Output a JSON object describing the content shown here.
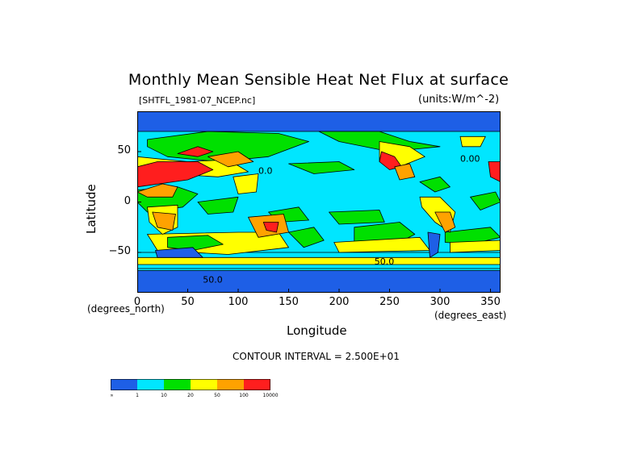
{
  "figure": {
    "title": "Monthly Mean Sensible Heat Net Flux at surface",
    "subtitle": "[SHTFL_1981-07_NCEP.nc]",
    "units": "(units:W/m^-2)",
    "contour_interval": "CONTOUR INTERVAL = 2.500E+01"
  },
  "chart_data": {
    "type": "heatmap",
    "title": "Monthly Mean Sensible Heat Net Flux at surface",
    "xlabel": "Longitude",
    "ylabel": "Latitude",
    "x_unit_label": "(degrees_east)",
    "y_unit_label": "(degrees_north)",
    "xlim": [
      0,
      360
    ],
    "ylim": [
      -90,
      90
    ],
    "x_ticks": [
      0,
      50,
      100,
      150,
      200,
      250,
      300,
      350
    ],
    "y_ticks": [
      50,
      0,
      -50
    ],
    "y_tick_labels": [
      "50",
      "0",
      "−50"
    ],
    "contour_labels": [
      {
        "text": "0.00",
        "x": 320,
        "y": 40
      },
      {
        "text": "0.0",
        "x": 120,
        "y": 28
      },
      {
        "text": "50.0",
        "x": 235,
        "y": -62
      },
      {
        "text": "50.0",
        "x": 65,
        "y": -80
      }
    ],
    "colorbar": {
      "colors": [
        "#1e5fe6",
        "#00e6ff",
        "#00e000",
        "#ffff00",
        "#ffa200",
        "#ff1e1e"
      ],
      "boundaries": [
        "-∞",
        "1",
        "10",
        "20",
        "50",
        "100",
        "10000"
      ]
    },
    "regions": [
      {
        "category": 0,
        "points": [
          [
            0,
            -90
          ],
          [
            360,
            -90
          ],
          [
            360,
            -68
          ],
          [
            0,
            -68
          ]
        ]
      },
      {
        "category": 0,
        "points": [
          [
            0,
            90
          ],
          [
            360,
            90
          ],
          [
            360,
            70
          ],
          [
            0,
            70
          ]
        ]
      },
      {
        "category": 1,
        "points": [
          [
            0,
            -66
          ],
          [
            360,
            -66
          ],
          [
            360,
            -50
          ],
          [
            0,
            -50
          ]
        ]
      },
      {
        "category": 3,
        "points": [
          [
            0,
            -62
          ],
          [
            360,
            -62
          ],
          [
            360,
            -55
          ],
          [
            0,
            -55
          ]
        ]
      },
      {
        "category": 3,
        "points": [
          [
            10,
            -32
          ],
          [
            100,
            -30
          ],
          [
            140,
            -30
          ],
          [
            150,
            -45
          ],
          [
            90,
            -52
          ],
          [
            20,
            -48
          ]
        ]
      },
      {
        "category": 2,
        "points": [
          [
            30,
            -35
          ],
          [
            70,
            -33
          ],
          [
            85,
            -42
          ],
          [
            55,
            -48
          ],
          [
            30,
            -45
          ]
        ]
      },
      {
        "category": 0,
        "points": [
          [
            18,
            -48
          ],
          [
            55,
            -45
          ],
          [
            65,
            -55
          ],
          [
            20,
            -55
          ]
        ]
      },
      {
        "category": 2,
        "points": [
          [
            150,
            -30
          ],
          [
            175,
            -25
          ],
          [
            185,
            -38
          ],
          [
            165,
            -45
          ]
        ]
      },
      {
        "category": 2,
        "points": [
          [
            215,
            -25
          ],
          [
            260,
            -20
          ],
          [
            275,
            -32
          ],
          [
            250,
            -45
          ],
          [
            215,
            -40
          ]
        ]
      },
      {
        "category": 3,
        "points": [
          [
            195,
            -40
          ],
          [
            280,
            -35
          ],
          [
            290,
            -48
          ],
          [
            200,
            -50
          ]
        ]
      },
      {
        "category": 2,
        "points": [
          [
            305,
            -30
          ],
          [
            350,
            -25
          ],
          [
            360,
            -35
          ],
          [
            330,
            -42
          ],
          [
            305,
            -40
          ]
        ]
      },
      {
        "category": 3,
        "points": [
          [
            310,
            -40
          ],
          [
            360,
            -38
          ],
          [
            360,
            -48
          ],
          [
            310,
            -50
          ]
        ]
      },
      {
        "category": 2,
        "points": [
          [
            0,
            12
          ],
          [
            40,
            15
          ],
          [
            60,
            8
          ],
          [
            45,
            -5
          ],
          [
            10,
            -10
          ],
          [
            0,
            0
          ]
        ]
      },
      {
        "category": 2,
        "points": [
          [
            60,
            0
          ],
          [
            100,
            5
          ],
          [
            95,
            -10
          ],
          [
            70,
            -12
          ]
        ]
      },
      {
        "category": 2,
        "points": [
          [
            130,
            -10
          ],
          [
            160,
            -5
          ],
          [
            170,
            -18
          ],
          [
            140,
            -20
          ]
        ]
      },
      {
        "category": 2,
        "points": [
          [
            190,
            -10
          ],
          [
            240,
            -8
          ],
          [
            245,
            -20
          ],
          [
            200,
            -22
          ]
        ]
      },
      {
        "category": 2,
        "points": [
          [
            280,
            20
          ],
          [
            300,
            25
          ],
          [
            310,
            15
          ],
          [
            295,
            10
          ]
        ]
      },
      {
        "category": 2,
        "points": [
          [
            330,
            5
          ],
          [
            355,
            10
          ],
          [
            360,
            0
          ],
          [
            340,
            -8
          ]
        ]
      },
      {
        "category": 2,
        "points": [
          [
            150,
            38
          ],
          [
            200,
            40
          ],
          [
            215,
            32
          ],
          [
            175,
            28
          ]
        ]
      },
      {
        "category": 2,
        "points": [
          [
            10,
            62
          ],
          [
            70,
            70
          ],
          [
            140,
            68
          ],
          [
            170,
            60
          ],
          [
            130,
            45
          ],
          [
            80,
            40
          ],
          [
            30,
            45
          ],
          [
            10,
            55
          ]
        ]
      },
      {
        "category": 3,
        "points": [
          [
            0,
            45
          ],
          [
            50,
            40
          ],
          [
            90,
            42
          ],
          [
            110,
            30
          ],
          [
            80,
            25
          ],
          [
            30,
            28
          ],
          [
            0,
            30
          ]
        ]
      },
      {
        "category": 5,
        "points": [
          [
            0,
            15
          ],
          [
            50,
            22
          ],
          [
            75,
            32
          ],
          [
            60,
            40
          ],
          [
            20,
            40
          ],
          [
            0,
            35
          ]
        ]
      },
      {
        "category": 4,
        "points": [
          [
            0,
            10
          ],
          [
            25,
            18
          ],
          [
            40,
            15
          ],
          [
            35,
            5
          ],
          [
            10,
            5
          ]
        ]
      },
      {
        "category": 5,
        "points": [
          [
            40,
            48
          ],
          [
            60,
            55
          ],
          [
            75,
            50
          ],
          [
            60,
            45
          ]
        ]
      },
      {
        "category": 4,
        "points": [
          [
            70,
            45
          ],
          [
            100,
            50
          ],
          [
            115,
            40
          ],
          [
            90,
            35
          ]
        ]
      },
      {
        "category": 3,
        "points": [
          [
            95,
            25
          ],
          [
            120,
            28
          ],
          [
            118,
            10
          ],
          [
            100,
            8
          ]
        ]
      },
      {
        "category": 3,
        "points": [
          [
            10,
            -5
          ],
          [
            40,
            -3
          ],
          [
            40,
            -25
          ],
          [
            25,
            -32
          ],
          [
            12,
            -20
          ]
        ]
      },
      {
        "category": 4,
        "points": [
          [
            15,
            -10
          ],
          [
            38,
            -12
          ],
          [
            35,
            -28
          ],
          [
            20,
            -25
          ]
        ]
      },
      {
        "category": 4,
        "points": [
          [
            110,
            -15
          ],
          [
            145,
            -12
          ],
          [
            150,
            -30
          ],
          [
            120,
            -35
          ]
        ]
      },
      {
        "category": 5,
        "points": [
          [
            125,
            -20
          ],
          [
            140,
            -20
          ],
          [
            138,
            -30
          ],
          [
            128,
            -28
          ]
        ]
      },
      {
        "category": 2,
        "points": [
          [
            180,
            70
          ],
          [
            240,
            70
          ],
          [
            270,
            60
          ],
          [
            300,
            55
          ],
          [
            250,
            50
          ],
          [
            200,
            60
          ]
        ]
      },
      {
        "category": 3,
        "points": [
          [
            240,
            60
          ],
          [
            270,
            55
          ],
          [
            285,
            45
          ],
          [
            260,
            35
          ],
          [
            240,
            40
          ]
        ]
      },
      {
        "category": 5,
        "points": [
          [
            242,
            50
          ],
          [
            255,
            45
          ],
          [
            262,
            35
          ],
          [
            250,
            32
          ],
          [
            240,
            40
          ]
        ]
      },
      {
        "category": 4,
        "points": [
          [
            255,
            35
          ],
          [
            270,
            38
          ],
          [
            275,
            25
          ],
          [
            260,
            22
          ]
        ]
      },
      {
        "category": 3,
        "points": [
          [
            280,
            5
          ],
          [
            300,
            5
          ],
          [
            315,
            -10
          ],
          [
            310,
            -30
          ],
          [
            295,
            -20
          ],
          [
            282,
            -5
          ]
        ]
      },
      {
        "category": 4,
        "points": [
          [
            295,
            -10
          ],
          [
            310,
            -10
          ],
          [
            315,
            -25
          ],
          [
            305,
            -30
          ]
        ]
      },
      {
        "category": 0,
        "points": [
          [
            288,
            -30
          ],
          [
            300,
            -32
          ],
          [
            298,
            -50
          ],
          [
            290,
            -55
          ]
        ]
      },
      {
        "category": 5,
        "points": [
          [
            348,
            40
          ],
          [
            360,
            40
          ],
          [
            360,
            20
          ],
          [
            350,
            25
          ]
        ]
      },
      {
        "category": 3,
        "points": [
          [
            320,
            65
          ],
          [
            345,
            65
          ],
          [
            340,
            55
          ],
          [
            322,
            55
          ]
        ]
      }
    ]
  }
}
